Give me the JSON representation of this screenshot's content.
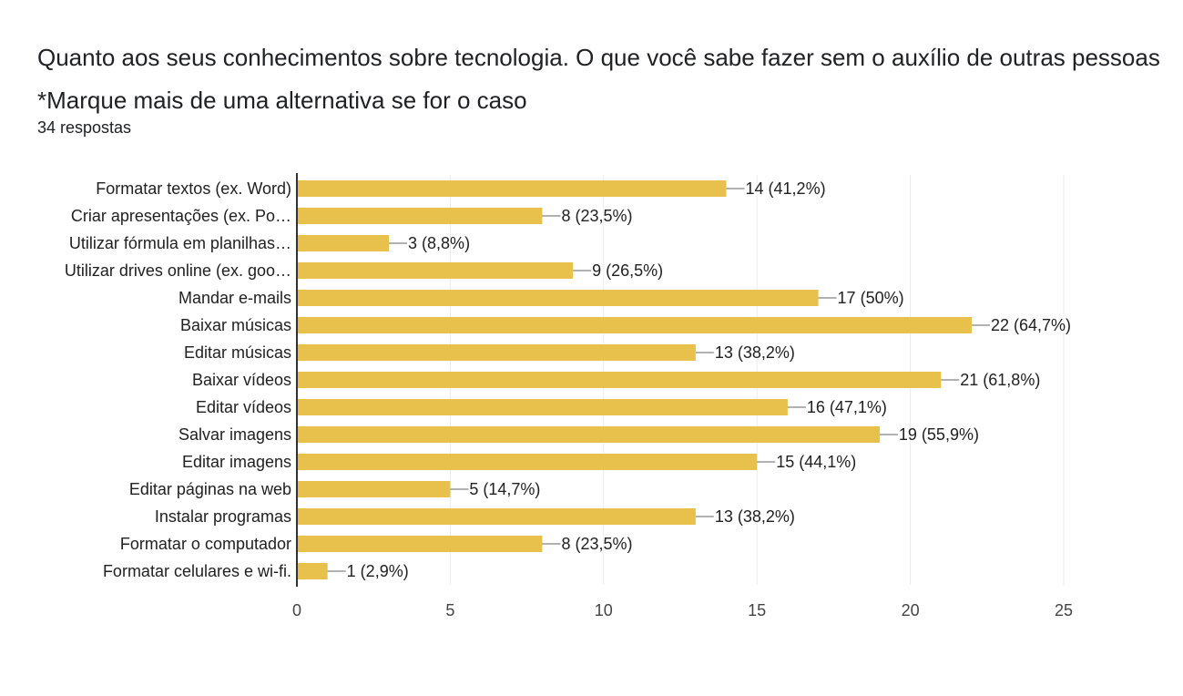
{
  "question": {
    "title": "Quanto aos seus conhecimentos sobre tecnologia. O que você sabe fazer sem o auxílio de outras pessoas   *Marque mais de uma alternativa se for o caso",
    "responses": "34 respostas"
  },
  "colors": {
    "bar": "#e7c14c",
    "grid": "#ebebeb",
    "axis": "#333333",
    "text": "#212121"
  },
  "chart_data": {
    "type": "bar",
    "orientation": "horizontal",
    "categories": [
      "Formatar textos (ex. Word)",
      "Criar apresentações (ex. Po…",
      "Utilizar fórmula em planilhas…",
      "Utilizar drives online (ex. goo…",
      "Mandar e-mails",
      "Baixar músicas",
      "Editar músicas",
      "Baixar vídeos",
      "Editar vídeos",
      "Salvar imagens",
      "Editar imagens",
      "Editar páginas na web",
      "Instalar programas",
      "Formatar o computador",
      "Formatar celulares e wi-fi."
    ],
    "values": [
      14,
      8,
      3,
      9,
      17,
      22,
      13,
      21,
      16,
      19,
      15,
      5,
      13,
      8,
      1
    ],
    "data_labels": [
      "14 (41,2%)",
      "8 (23,5%)",
      "3 (8,8%)",
      "9 (26,5%)",
      "17 (50%)",
      "22 (64,7%)",
      "13 (38,2%)",
      "21 (61,8%)",
      "16 (47,1%)",
      "19 (55,9%)",
      "15 (44,1%)",
      "5 (14,7%)",
      "13 (38,2%)",
      "8 (23,5%)",
      "1 (2,9%)"
    ],
    "xlim": [
      0,
      25
    ],
    "xticks": [
      "0",
      "5",
      "10",
      "15",
      "20",
      "25"
    ],
    "grid": true,
    "legend": "none"
  }
}
